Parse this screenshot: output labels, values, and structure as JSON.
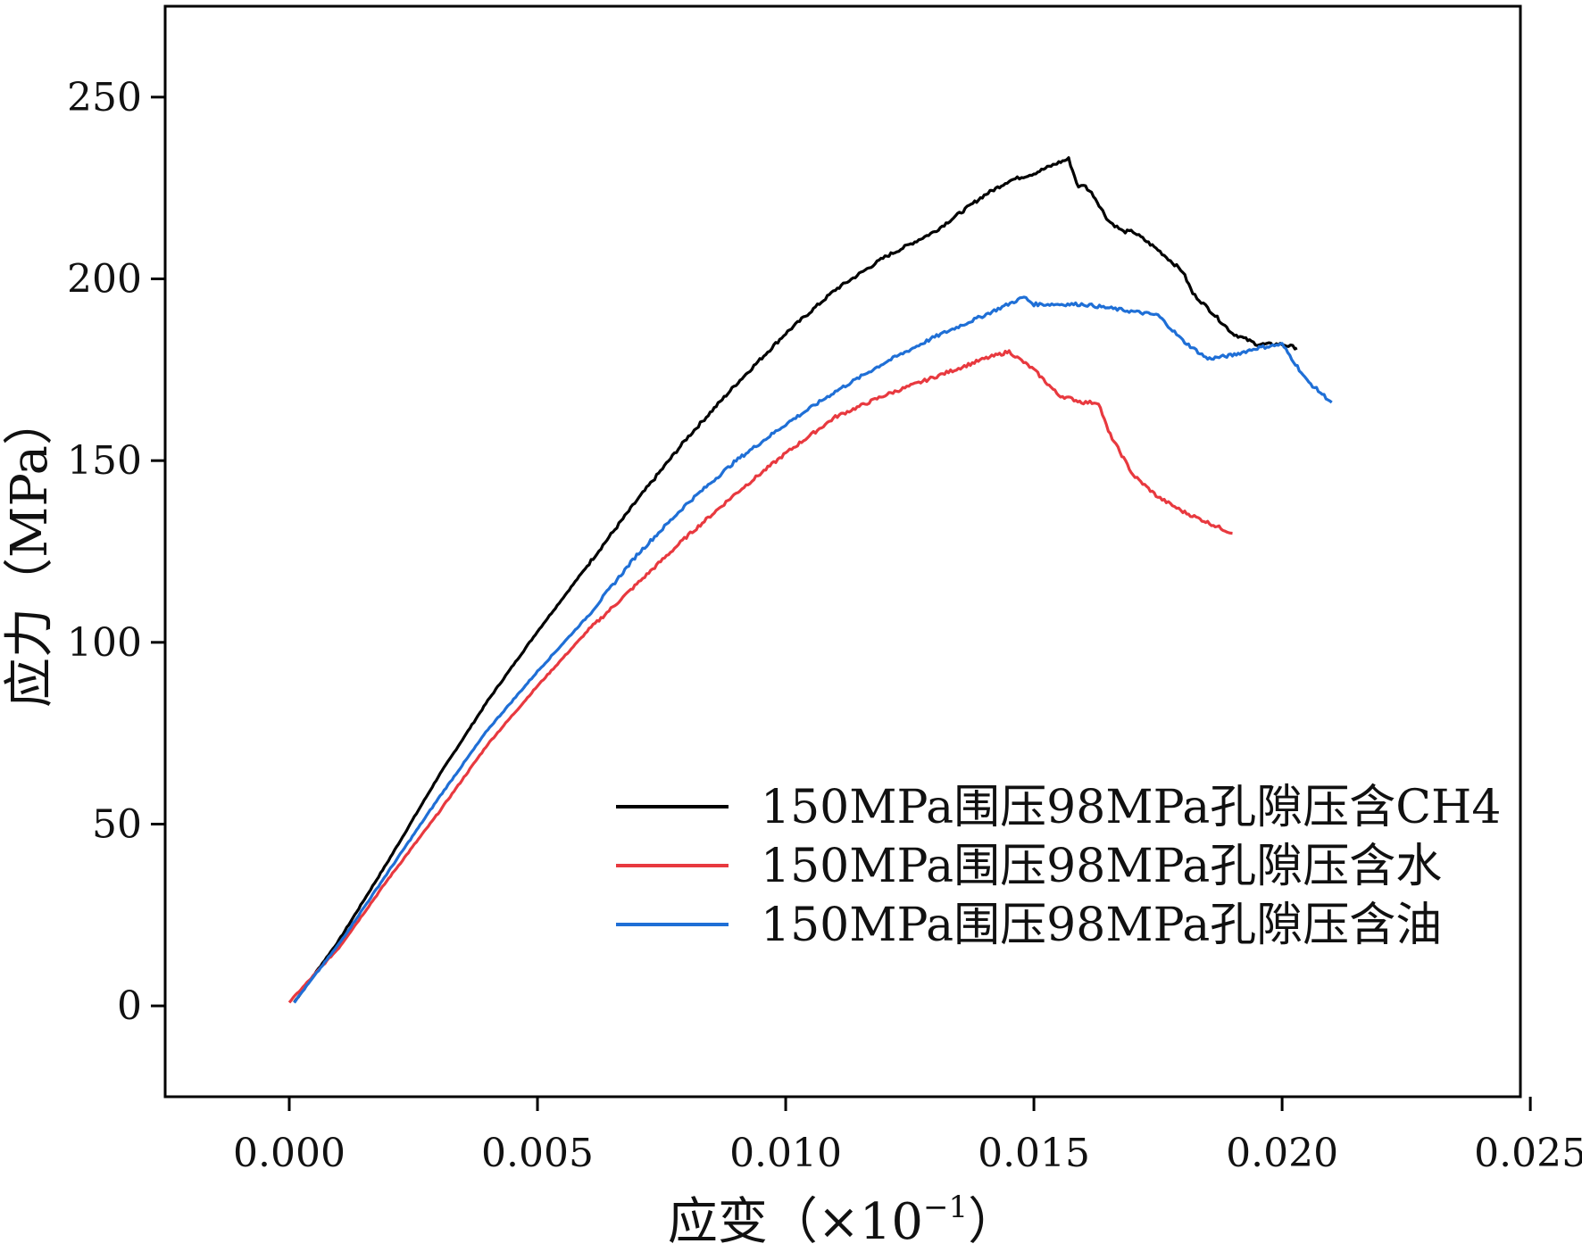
{
  "chart_data": {
    "type": "line",
    "title": "",
    "xlabel": "应变（×10",
    "xlabel_exponent": "−1",
    "xlabel_close": "）",
    "ylabel": "应力（MPa）",
    "xlim": [
      -0.0025,
      0.0248
    ],
    "ylim": [
      -25,
      275
    ],
    "x_ticks": [
      0.0,
      0.005,
      0.01,
      0.015,
      0.02,
      0.025
    ],
    "x_tick_labels": [
      "0.000",
      "0.005",
      "0.010",
      "0.015",
      "0.020",
      "0.025"
    ],
    "y_ticks": [
      0,
      50,
      100,
      150,
      200,
      250
    ],
    "y_tick_labels": [
      "0",
      "50",
      "100",
      "150",
      "200",
      "250"
    ],
    "grid": false,
    "legend_position": "lower-right",
    "series": [
      {
        "name": "150MPa围压98MPa孔隙压含CH4",
        "color": "#000000",
        "x": [
          0.0001,
          0.001,
          0.002,
          0.003,
          0.004,
          0.005,
          0.006,
          0.007,
          0.008,
          0.009,
          0.01,
          0.011,
          0.012,
          0.013,
          0.0135,
          0.014,
          0.0145,
          0.015,
          0.0155,
          0.0157,
          0.0159,
          0.016,
          0.0162,
          0.0165,
          0.0168,
          0.017,
          0.0175,
          0.018,
          0.0182,
          0.0185,
          0.019,
          0.0195,
          0.02,
          0.0203
        ],
        "y": [
          1,
          18,
          40,
          63,
          84,
          103,
          121,
          139,
          156,
          171,
          185,
          197,
          206,
          213,
          218,
          223,
          227,
          229,
          232,
          233,
          225,
          226,
          223,
          216,
          213,
          213,
          208,
          202,
          196,
          192,
          185,
          182,
          182,
          181
        ]
      },
      {
        "name": "150MPa围压98MPa孔隙压含水",
        "color": "#e8393f",
        "x": [
          0.0,
          0.001,
          0.002,
          0.003,
          0.004,
          0.005,
          0.006,
          0.007,
          0.008,
          0.009,
          0.01,
          0.011,
          0.012,
          0.013,
          0.014,
          0.0145,
          0.015,
          0.0155,
          0.016,
          0.0163,
          0.0165,
          0.017,
          0.0175,
          0.018,
          0.0185,
          0.019
        ],
        "y": [
          1,
          16,
          35,
          53,
          72,
          88,
          103,
          116,
          129,
          141,
          152,
          162,
          168,
          173,
          178,
          180,
          175,
          168,
          166,
          166,
          158,
          146,
          140,
          136,
          133,
          130
        ]
      },
      {
        "name": "150MPa围压98MPa孔隙压含油",
        "color": "#1f6fd6",
        "x": [
          0.0001,
          0.001,
          0.002,
          0.003,
          0.004,
          0.005,
          0.006,
          0.007,
          0.008,
          0.009,
          0.01,
          0.011,
          0.012,
          0.013,
          0.014,
          0.0148,
          0.015,
          0.016,
          0.017,
          0.0175,
          0.018,
          0.0185,
          0.019,
          0.0195,
          0.02,
          0.0205,
          0.021
        ],
        "y": [
          1,
          17,
          37,
          57,
          76,
          92,
          107,
          124,
          138,
          150,
          160,
          169,
          177,
          184,
          190,
          195,
          193,
          193,
          191,
          190,
          183,
          178,
          179,
          181,
          182,
          172,
          166
        ]
      }
    ]
  }
}
